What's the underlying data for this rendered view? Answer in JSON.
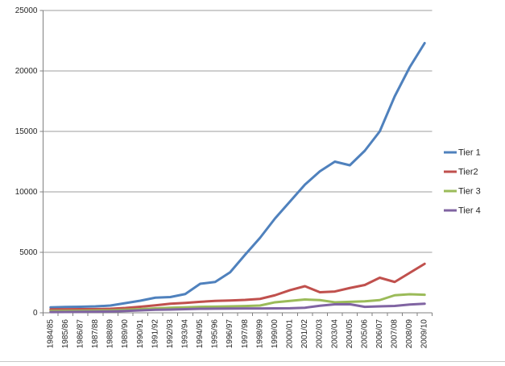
{
  "chart_data": {
    "type": "line",
    "title": "",
    "xlabel": "",
    "ylabel": "",
    "grid": true,
    "legend_position": "right",
    "ylim": [
      0,
      25000
    ],
    "y_ticks": [
      0,
      5000,
      10000,
      15000,
      20000,
      25000
    ],
    "y_tick_labels": [
      "0",
      "5000",
      "10000",
      "15000",
      "20000",
      "25000"
    ],
    "categories": [
      "1984/85",
      "1985/86",
      "1986/87",
      "1987/88",
      "1988/89",
      "1989/90",
      "1990/91",
      "1991/92",
      "1992/93",
      "1993/94",
      "1994/95",
      "1995/96",
      "1996/97",
      "1997/98",
      "1998/99",
      "1999/00",
      "2000/01",
      "2001/02",
      "2002/03",
      "2003/04",
      "2004/05",
      "2005/06",
      "2006/07",
      "2007/08",
      "2008/09",
      "2009/10"
    ],
    "series": [
      {
        "name": "Tier 1",
        "color": "#4F81BD",
        "values": [
          450,
          480,
          500,
          530,
          600,
          800,
          1000,
          1250,
          1300,
          1550,
          2400,
          2550,
          3350,
          4800,
          6200,
          7800,
          9200,
          10600,
          11700,
          12500,
          12200,
          13400,
          15000,
          17900,
          20300,
          22300
        ]
      },
      {
        "name": "Tier2",
        "color": "#C0504D",
        "values": [
          280,
          290,
          300,
          310,
          330,
          400,
          500,
          620,
          750,
          820,
          910,
          980,
          1020,
          1070,
          1150,
          1450,
          1870,
          2200,
          1700,
          1760,
          2050,
          2300,
          2900,
          2550,
          3300,
          4050
        ]
      },
      {
        "name": "Tier 3",
        "color": "#9BBB59",
        "values": [
          150,
          160,
          170,
          180,
          200,
          250,
          300,
          370,
          420,
          450,
          490,
          510,
          530,
          560,
          600,
          870,
          980,
          1100,
          1050,
          870,
          910,
          950,
          1050,
          1450,
          1530,
          1490
        ]
      },
      {
        "name": "Tier 4",
        "color": "#8064A2",
        "values": [
          60,
          70,
          80,
          90,
          110,
          150,
          200,
          250,
          270,
          300,
          330,
          340,
          350,
          355,
          360,
          365,
          375,
          420,
          580,
          700,
          710,
          490,
          530,
          570,
          680,
          750
        ]
      }
    ]
  },
  "colors": {
    "background": "#FFFFFF",
    "gridline": "#9C9C9C",
    "axis": "#808080",
    "text": "#262626",
    "border": "#C8C8C8"
  }
}
